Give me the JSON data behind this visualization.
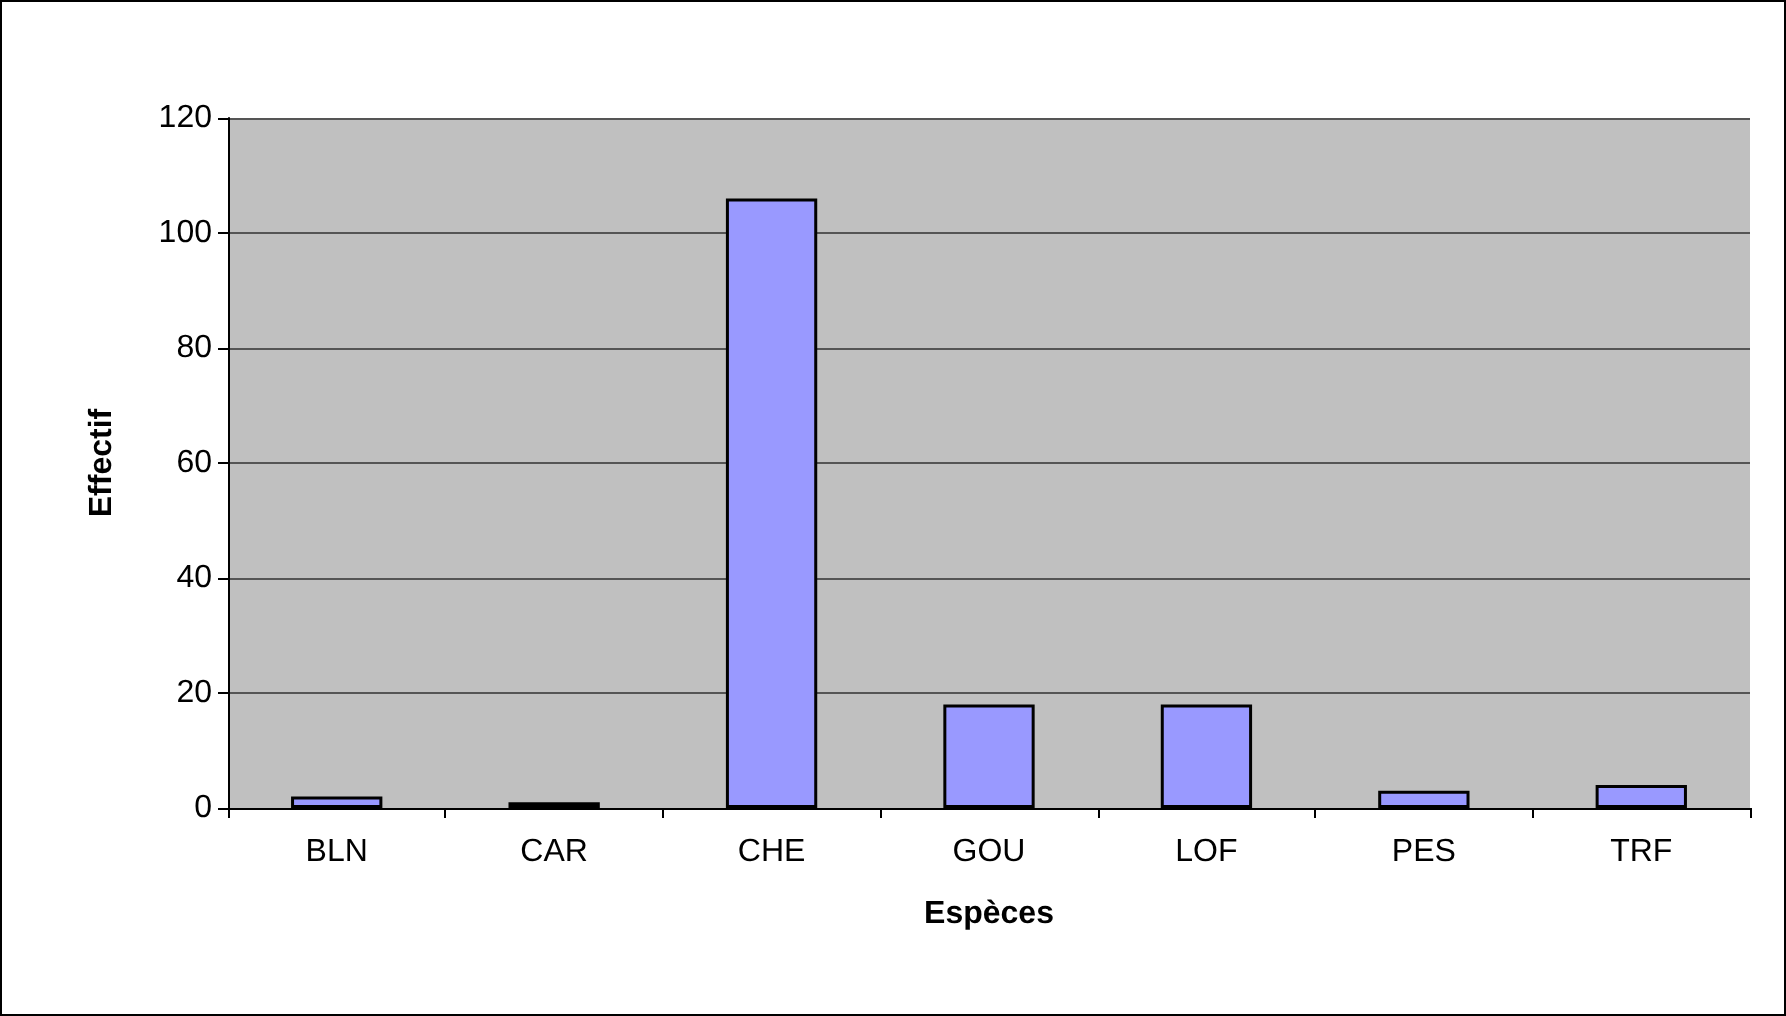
{
  "chart_data": {
    "type": "bar",
    "xlabel": "Espèces",
    "ylabel": "Effectif",
    "categories": [
      "BLN",
      "CAR",
      "CHE",
      "GOU",
      "LOF",
      "PES",
      "TRF"
    ],
    "values": [
      2,
      1,
      106,
      18,
      18,
      3,
      4
    ],
    "color": "#9999ff",
    "ylim": [
      0,
      120
    ],
    "yticks": [
      0,
      20,
      40,
      60,
      80,
      100,
      120
    ],
    "grid": "y"
  }
}
